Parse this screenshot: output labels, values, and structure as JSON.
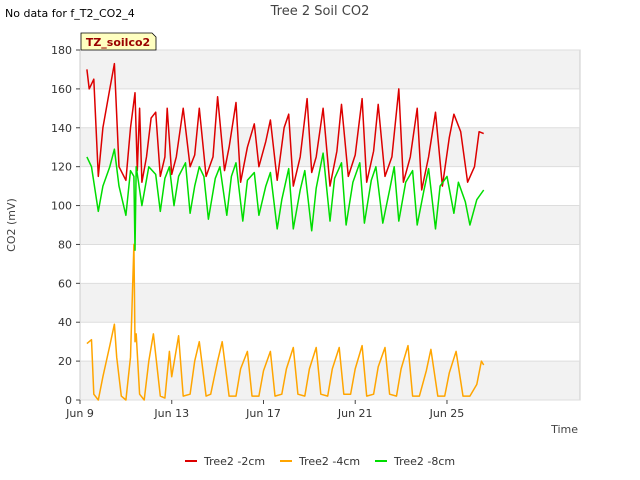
{
  "page": {
    "no_data_note": "No data for f_T2_CO2_4"
  },
  "chart_data": {
    "type": "line",
    "title": "Tree 2 Soil CO2",
    "xlabel": "Time",
    "ylabel": "CO2 (mV)",
    "annotation": "TZ_soilco2",
    "x_unit": "days since Jun 9",
    "xlim": [
      0,
      21.8
    ],
    "ylim": [
      0,
      180
    ],
    "yticks": [
      0,
      20,
      40,
      60,
      80,
      100,
      120,
      140,
      160,
      180
    ],
    "xticks": [
      {
        "x": 0,
        "label": "Jun 9"
      },
      {
        "x": 4,
        "label": "Jun 13"
      },
      {
        "x": 8,
        "label": "Jun 17"
      },
      {
        "x": 12,
        "label": "Jun 21"
      },
      {
        "x": 16,
        "label": "Jun 25"
      }
    ],
    "grid": "horizontal bands",
    "legend_position": "bottom",
    "series": [
      {
        "name": "Tree2 -2cm",
        "color": "#dd0000",
        "x": [
          0.3,
          0.4,
          0.6,
          0.8,
          1.0,
          1.3,
          1.5,
          1.7,
          2.0,
          2.2,
          2.4,
          2.5,
          2.6,
          2.7,
          2.9,
          3.1,
          3.3,
          3.5,
          3.7,
          3.8,
          4.0,
          4.2,
          4.5,
          4.8,
          5.0,
          5.2,
          5.5,
          5.8,
          6.0,
          6.3,
          6.5,
          6.8,
          7.0,
          7.3,
          7.6,
          7.8,
          8.1,
          8.3,
          8.6,
          8.9,
          9.1,
          9.3,
          9.6,
          9.9,
          10.1,
          10.3,
          10.6,
          10.9,
          11.2,
          11.4,
          11.7,
          12.0,
          12.3,
          12.5,
          12.8,
          13.0,
          13.3,
          13.6,
          13.9,
          14.1,
          14.4,
          14.7,
          14.9,
          15.2,
          15.5,
          15.8,
          16.1,
          16.3,
          16.6,
          16.9,
          17.2,
          17.4,
          17.6
        ],
        "y": [
          170,
          160,
          165,
          115,
          140,
          160,
          173,
          120,
          113,
          140,
          158,
          118,
          150,
          112,
          125,
          145,
          148,
          115,
          125,
          150,
          116,
          125,
          150,
          120,
          126,
          150,
          115,
          125,
          156,
          118,
          130,
          153,
          112,
          130,
          142,
          120,
          133,
          144,
          113,
          140,
          147,
          110,
          125,
          155,
          117,
          125,
          150,
          110,
          128,
          152,
          115,
          126,
          155,
          112,
          128,
          152,
          115,
          125,
          160,
          112,
          125,
          150,
          108,
          125,
          148,
          110,
          135,
          147,
          138,
          112,
          120,
          138,
          137
        ]
      },
      {
        "name": "Tree2 -4cm",
        "color": "#ffa500",
        "x": [
          0.3,
          0.5,
          0.6,
          0.8,
          1.0,
          1.3,
          1.5,
          1.6,
          1.8,
          2.0,
          2.2,
          2.35,
          2.4,
          2.45,
          2.6,
          2.8,
          3.0,
          3.2,
          3.5,
          3.7,
          3.9,
          4.0,
          4.3,
          4.5,
          4.8,
          5.0,
          5.2,
          5.5,
          5.7,
          6.0,
          6.2,
          6.5,
          6.8,
          7.0,
          7.3,
          7.5,
          7.8,
          8.0,
          8.3,
          8.5,
          8.8,
          9.0,
          9.3,
          9.5,
          9.8,
          10.0,
          10.3,
          10.5,
          10.8,
          11.0,
          11.3,
          11.5,
          11.8,
          12.0,
          12.3,
          12.5,
          12.8,
          13.0,
          13.3,
          13.5,
          13.8,
          14.0,
          14.3,
          14.5,
          14.8,
          15.1,
          15.3,
          15.6,
          15.9,
          16.1,
          16.4,
          16.7,
          17.0,
          17.3,
          17.5,
          17.6
        ],
        "y": [
          29,
          31,
          3,
          0,
          12,
          28,
          39,
          22,
          2,
          0,
          22,
          80,
          30,
          34,
          3,
          0,
          20,
          34,
          2,
          1,
          25,
          12,
          33,
          2,
          3,
          20,
          30,
          2,
          3,
          20,
          30,
          2,
          2,
          16,
          25,
          2,
          2,
          15,
          25,
          2,
          3,
          16,
          27,
          3,
          2,
          16,
          27,
          3,
          2,
          16,
          27,
          3,
          3,
          16,
          28,
          2,
          3,
          17,
          27,
          3,
          2,
          16,
          28,
          2,
          2,
          15,
          26,
          2,
          2,
          14,
          25,
          2,
          2,
          8,
          20,
          18
        ]
      },
      {
        "name": "Tree2 -8cm",
        "color": "#00dd00",
        "x": [
          0.3,
          0.5,
          0.8,
          1.0,
          1.3,
          1.5,
          1.7,
          2.0,
          2.2,
          2.35,
          2.4,
          2.45,
          2.55,
          2.7,
          3.0,
          3.3,
          3.5,
          3.7,
          3.9,
          4.1,
          4.3,
          4.6,
          4.8,
          5.0,
          5.2,
          5.4,
          5.6,
          5.9,
          6.1,
          6.4,
          6.6,
          6.8,
          7.1,
          7.3,
          7.6,
          7.8,
          8.1,
          8.3,
          8.6,
          8.8,
          9.1,
          9.3,
          9.6,
          9.8,
          10.1,
          10.3,
          10.6,
          10.9,
          11.1,
          11.4,
          11.6,
          11.9,
          12.2,
          12.4,
          12.7,
          12.9,
          13.2,
          13.5,
          13.7,
          13.9,
          14.2,
          14.5,
          14.7,
          15.0,
          15.2,
          15.5,
          15.7,
          16.0,
          16.3,
          16.5,
          16.8,
          17.0,
          17.3,
          17.6
        ],
        "y": [
          125,
          120,
          97,
          110,
          120,
          129,
          110,
          95,
          118,
          115,
          77,
          120,
          112,
          100,
          120,
          116,
          97,
          114,
          120,
          100,
          115,
          122,
          96,
          110,
          120,
          115,
          93,
          114,
          120,
          95,
          115,
          122,
          92,
          113,
          117,
          95,
          110,
          117,
          88,
          103,
          119,
          88,
          108,
          118,
          87,
          109,
          127,
          92,
          114,
          122,
          90,
          112,
          122,
          91,
          113,
          120,
          91,
          108,
          120,
          92,
          112,
          118,
          90,
          108,
          119,
          88,
          110,
          115,
          96,
          112,
          102,
          90,
          103,
          108
        ]
      }
    ]
  }
}
